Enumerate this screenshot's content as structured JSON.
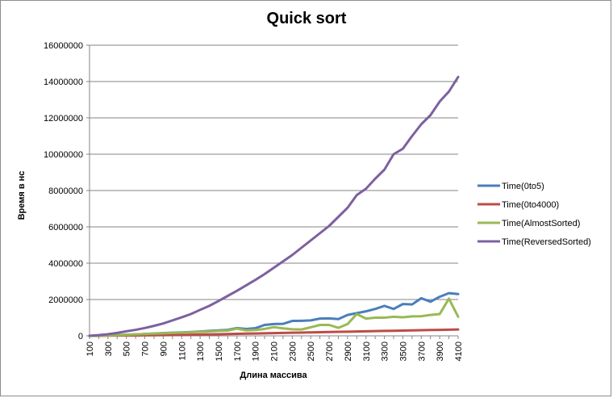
{
  "chart_data": {
    "type": "line",
    "title": "Quick sort",
    "xlabel": "Длина массива",
    "ylabel": "Время в нс",
    "ylim": [
      0,
      16000000
    ],
    "yticks": [
      "0",
      "2000000",
      "4000000",
      "6000000",
      "8000000",
      "10000000",
      "12000000",
      "14000000",
      "16000000"
    ],
    "categories": [
      "100",
      "200",
      "300",
      "400",
      "500",
      "600",
      "700",
      "800",
      "900",
      "1000",
      "1100",
      "1200",
      "1300",
      "1400",
      "1500",
      "1600",
      "1700",
      "1800",
      "1900",
      "2000",
      "2100",
      "2200",
      "2300",
      "2400",
      "2500",
      "2600",
      "2700",
      "2800",
      "2900",
      "3000",
      "3100",
      "3200",
      "3300",
      "3400",
      "3500",
      "3600",
      "3700",
      "3800",
      "3900",
      "4000",
      "4100"
    ],
    "xtick_labels": [
      "100",
      "300",
      "500",
      "700",
      "900",
      "1100",
      "1300",
      "1500",
      "1700",
      "1900",
      "2100",
      "2300",
      "2500",
      "2700",
      "2900",
      "3100",
      "3300",
      "3500",
      "3700",
      "3900",
      "4100"
    ],
    "grid": true,
    "legend_position": "right",
    "series": [
      {
        "name": "Time(0to5)",
        "color": "#4a7ebb",
        "values": [
          0,
          10000,
          20000,
          40000,
          60000,
          80000,
          100000,
          130000,
          150000,
          170000,
          190000,
          210000,
          240000,
          270000,
          300000,
          330000,
          430000,
          380000,
          420000,
          600000,
          650000,
          660000,
          820000,
          830000,
          850000,
          950000,
          960000,
          920000,
          1150000,
          1250000,
          1350000,
          1480000,
          1650000,
          1480000,
          1750000,
          1730000,
          2070000,
          1880000,
          2150000,
          2350000,
          2300000
        ]
      },
      {
        "name": "Time(0to4000)",
        "color": "#be4b48",
        "values": [
          0,
          5000,
          10000,
          15000,
          20000,
          25000,
          30000,
          35000,
          40000,
          45000,
          50000,
          60000,
          70000,
          80000,
          90000,
          100000,
          110000,
          120000,
          130000,
          140000,
          150000,
          160000,
          170000,
          180000,
          190000,
          200000,
          210000,
          220000,
          230000,
          240000,
          250000,
          260000,
          270000,
          280000,
          290000,
          300000,
          310000,
          320000,
          330000,
          340000,
          350000
        ]
      },
      {
        "name": "Time(AlmostSorted)",
        "color": "#98b954",
        "values": [
          0,
          10000,
          20000,
          40000,
          60000,
          80000,
          100000,
          120000,
          140000,
          160000,
          180000,
          200000,
          220000,
          240000,
          270000,
          290000,
          400000,
          300000,
          320000,
          380000,
          480000,
          410000,
          360000,
          350000,
          470000,
          600000,
          600000,
          440000,
          650000,
          1200000,
          950000,
          1000000,
          1000000,
          1050000,
          1020000,
          1070000,
          1080000,
          1150000,
          1200000,
          2050000,
          1050000
        ]
      },
      {
        "name": "Time(ReversedSorted)",
        "color": "#7d60a0",
        "values": [
          0,
          40000,
          90000,
          160000,
          250000,
          330000,
          430000,
          550000,
          680000,
          850000,
          1020000,
          1200000,
          1430000,
          1650000,
          1920000,
          2200000,
          2480000,
          2780000,
          3080000,
          3400000,
          3750000,
          4100000,
          4450000,
          4850000,
          5250000,
          5650000,
          6050000,
          6550000,
          7050000,
          7750000,
          8100000,
          8650000,
          9150000,
          10000000,
          10300000,
          11000000,
          11650000,
          12150000,
          12900000,
          13450000,
          14250000
        ]
      }
    ]
  }
}
